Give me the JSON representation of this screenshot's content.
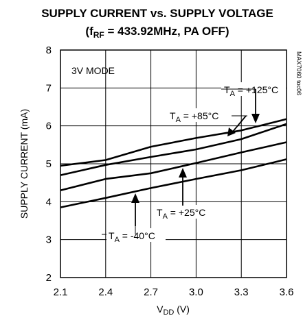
{
  "chart_data": {
    "type": "line",
    "title": "SUPPLY CURRENT vs. SUPPLY VOLTAGE",
    "subtitle": {
      "prefix": "(f",
      "sub": "RF",
      "suffix": " = 433.92MHz, PA OFF)"
    },
    "xlabel": {
      "main": "V",
      "sub": "DD",
      "suffix": " (V)"
    },
    "ylabel": "SUPPLY CURRENT (mA)",
    "xlim": [
      2.1,
      3.6
    ],
    "ylim": [
      2,
      8
    ],
    "xticks": [
      "2.1",
      "2.4",
      "2.7",
      "3.0",
      "3.3",
      "3.6"
    ],
    "yticks": [
      "2",
      "3",
      "4",
      "5",
      "6",
      "7",
      "8"
    ],
    "grid": true,
    "mode_label": "3V MODE",
    "figure_code": "MAX7060 toc06",
    "x": [
      2.1,
      2.4,
      2.7,
      3.0,
      3.3,
      3.6
    ],
    "series": [
      {
        "name": "+125°C",
        "values": [
          4.95,
          5.1,
          5.45,
          5.68,
          5.88,
          6.18
        ]
      },
      {
        "name": "+85°C",
        "values": [
          4.7,
          4.97,
          5.18,
          5.38,
          5.65,
          6.05
        ]
      },
      {
        "name": "+25°C",
        "values": [
          4.3,
          4.6,
          4.75,
          5.02,
          5.3,
          5.57
        ]
      },
      {
        "name": "-40°C",
        "values": [
          3.85,
          4.1,
          4.36,
          4.6,
          4.83,
          5.12
        ]
      }
    ],
    "annotations": [
      {
        "prefix": "T",
        "sub": "A",
        "text": " = +125°C"
      },
      {
        "prefix": "T",
        "sub": "A",
        "text": " = +85°C"
      },
      {
        "prefix": "T",
        "sub": "A",
        "text": " = +25°C"
      },
      {
        "prefix": "T",
        "sub": "A",
        "text": " = -40°C"
      }
    ]
  }
}
